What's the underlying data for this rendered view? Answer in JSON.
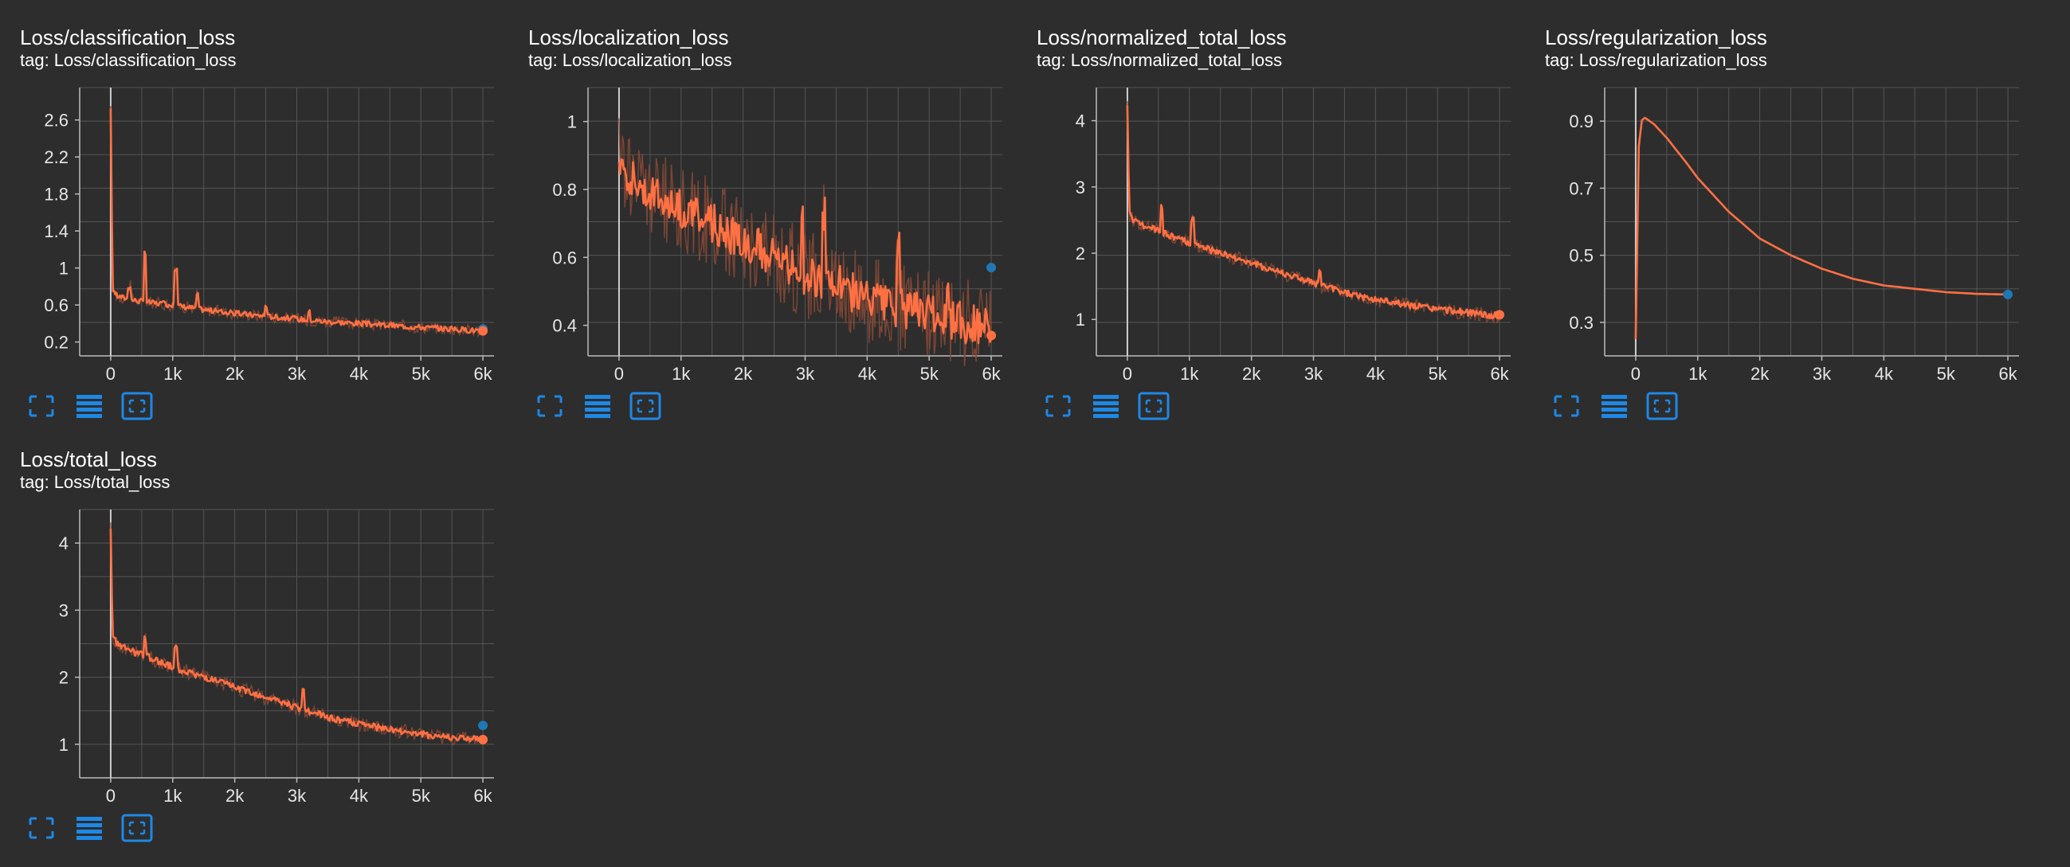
{
  "colors": {
    "background": "#2d2d2d",
    "grid": "#555555",
    "line": "#ff7043",
    "raw_line": "#8a4a36",
    "marker_blue": "#1f77b4",
    "icon": "#1e88e5"
  },
  "charts": [
    {
      "title": "Loss/classification_loss",
      "tag": "tag: Loss/classification_loss"
    },
    {
      "title": "Loss/localization_loss",
      "tag": "tag: Loss/localization_loss"
    },
    {
      "title": "Loss/normalized_total_loss",
      "tag": "tag: Loss/normalized_total_loss"
    },
    {
      "title": "Loss/regularization_loss",
      "tag": "tag: Loss/regularization_loss"
    },
    {
      "title": "Loss/total_loss",
      "tag": "tag: Loss/total_loss"
    }
  ],
  "toolbar_icons": [
    "fullscreen-icon",
    "data-table-icon",
    "fit-domain-icon"
  ],
  "chart_data": [
    {
      "type": "line",
      "title": "Loss/classification_loss",
      "xlim": [
        -500,
        6500
      ],
      "ylim": [
        0.05,
        2.95
      ],
      "x_ticks": [
        0,
        1000,
        2000,
        3000,
        4000,
        5000,
        6000
      ],
      "x_tick_labels": [
        "0",
        "1k",
        "2k",
        "3k",
        "4k",
        "5k",
        "6k"
      ],
      "y_ticks": [
        0.2,
        0.6,
        1,
        1.4,
        1.8,
        2.2,
        2.6
      ],
      "y_tick_labels": [
        "0.2",
        "0.6",
        "1",
        "1.4",
        "1.8",
        "2.2",
        "2.6"
      ],
      "series": [
        {
          "values_x": [
            0,
            30,
            100,
            300,
            600,
            1000,
            1500,
            2000,
            2500,
            3000,
            3500,
            4000,
            4500,
            5000,
            5500,
            6000
          ],
          "values_y": [
            2.7,
            0.78,
            0.7,
            0.66,
            0.63,
            0.6,
            0.55,
            0.51,
            0.48,
            0.45,
            0.42,
            0.4,
            0.38,
            0.36,
            0.34,
            0.32
          ]
        }
      ],
      "spikes": [
        [
          300,
          0.8
        ],
        [
          560,
          1.15
        ],
        [
          1050,
          1.0
        ],
        [
          1400,
          0.72
        ],
        [
          2500,
          0.6
        ],
        [
          3200,
          0.52
        ]
      ],
      "noise": 0.03,
      "end_markers": [
        {
          "x": 6000,
          "y": 0.34,
          "color": "blue"
        },
        {
          "x": 6000,
          "y": 0.32,
          "color": "orange"
        }
      ]
    },
    {
      "type": "line",
      "title": "Loss/localization_loss",
      "xlim": [
        -500,
        6500
      ],
      "ylim": [
        0.31,
        1.1
      ],
      "x_ticks": [
        0,
        1000,
        2000,
        3000,
        4000,
        5000,
        6000
      ],
      "x_tick_labels": [
        "0",
        "1k",
        "2k",
        "3k",
        "4k",
        "5k",
        "6k"
      ],
      "y_ticks": [
        0.4,
        0.6,
        0.8,
        1
      ],
      "y_tick_labels": [
        "0.4",
        "0.6",
        "0.8",
        "1"
      ],
      "series": [
        {
          "values_x": [
            0,
            100,
            300,
            600,
            1000,
            1500,
            2000,
            2500,
            3000,
            3500,
            4000,
            4500,
            5000,
            5500,
            6000
          ],
          "values_y": [
            0.9,
            0.86,
            0.82,
            0.78,
            0.74,
            0.7,
            0.65,
            0.6,
            0.55,
            0.52,
            0.48,
            0.45,
            0.43,
            0.41,
            0.39
          ]
        }
      ],
      "spikes": [
        [
          2950,
          0.76
        ],
        [
          3300,
          0.72
        ],
        [
          4500,
          0.62
        ],
        [
          5300,
          0.55
        ]
      ],
      "noise": 0.06,
      "end_markers": [
        {
          "x": 6000,
          "y": 0.57,
          "color": "blue"
        },
        {
          "x": 6000,
          "y": 0.37,
          "color": "orange"
        }
      ]
    },
    {
      "type": "line",
      "title": "Loss/normalized_total_loss",
      "xlim": [
        -500,
        6500
      ],
      "ylim": [
        0.45,
        4.5
      ],
      "x_ticks": [
        0,
        1000,
        2000,
        3000,
        4000,
        5000,
        6000
      ],
      "x_tick_labels": [
        "0",
        "1k",
        "2k",
        "3k",
        "4k",
        "5k",
        "6k"
      ],
      "y_ticks": [
        1,
        2,
        3,
        4
      ],
      "y_tick_labels": [
        "1",
        "2",
        "3",
        "4"
      ],
      "series": [
        {
          "values_x": [
            0,
            30,
            100,
            300,
            600,
            1000,
            1500,
            2000,
            2500,
            3000,
            3500,
            4000,
            4500,
            5000,
            5500,
            6000
          ],
          "values_y": [
            4.2,
            2.6,
            2.5,
            2.4,
            2.3,
            2.15,
            2.0,
            1.85,
            1.7,
            1.55,
            1.4,
            1.3,
            1.22,
            1.15,
            1.1,
            1.05
          ]
        }
      ],
      "spikes": [
        [
          550,
          2.7
        ],
        [
          1050,
          2.5
        ],
        [
          3100,
          1.75
        ]
      ],
      "noise": 0.05,
      "end_markers": [
        {
          "x": 6000,
          "y": 1.07,
          "color": "orange"
        }
      ]
    },
    {
      "type": "line",
      "title": "Loss/regularization_loss",
      "xlim": [
        -500,
        6500
      ],
      "ylim": [
        0.2,
        1.0
      ],
      "x_ticks": [
        0,
        1000,
        2000,
        3000,
        4000,
        5000,
        6000
      ],
      "x_tick_labels": [
        "0",
        "1k",
        "2k",
        "3k",
        "4k",
        "5k",
        "6k"
      ],
      "y_ticks": [
        0.3,
        0.5,
        0.7,
        0.9
      ],
      "y_tick_labels": [
        "0.3",
        "0.5",
        "0.7",
        "0.9"
      ],
      "series": [
        {
          "values_x": [
            0,
            40,
            80,
            150,
            300,
            500,
            800,
            1000,
            1500,
            2000,
            2500,
            3000,
            3500,
            4000,
            4500,
            5000,
            5500,
            6000
          ],
          "values_y": [
            0.25,
            0.8,
            0.9,
            0.91,
            0.89,
            0.85,
            0.78,
            0.73,
            0.63,
            0.55,
            0.5,
            0.46,
            0.43,
            0.41,
            0.4,
            0.39,
            0.385,
            0.383
          ]
        }
      ],
      "spikes": [],
      "noise": 0,
      "end_markers": [
        {
          "x": 6000,
          "y": 0.383,
          "color": "blue"
        }
      ]
    },
    {
      "type": "line",
      "title": "Loss/total_loss",
      "xlim": [
        -500,
        6500
      ],
      "ylim": [
        0.5,
        4.5
      ],
      "x_ticks": [
        0,
        1000,
        2000,
        3000,
        4000,
        5000,
        6000
      ],
      "x_tick_labels": [
        "0",
        "1k",
        "2k",
        "3k",
        "4k",
        "5k",
        "6k"
      ],
      "y_ticks": [
        1,
        2,
        3,
        4
      ],
      "y_tick_labels": [
        "1",
        "2",
        "3",
        "4"
      ],
      "series": [
        {
          "values_x": [
            0,
            30,
            100,
            300,
            600,
            1000,
            1500,
            2000,
            2500,
            3000,
            3500,
            4000,
            4500,
            5000,
            5500,
            6000
          ],
          "values_y": [
            4.2,
            2.6,
            2.5,
            2.4,
            2.3,
            2.15,
            2.0,
            1.85,
            1.7,
            1.55,
            1.4,
            1.3,
            1.22,
            1.15,
            1.1,
            1.07
          ]
        }
      ],
      "spikes": [
        [
          550,
          2.6
        ],
        [
          1050,
          2.45
        ],
        [
          3100,
          1.8
        ]
      ],
      "noise": 0.05,
      "end_markers": [
        {
          "x": 6000,
          "y": 1.28,
          "color": "blue"
        },
        {
          "x": 6000,
          "y": 1.07,
          "color": "orange"
        }
      ]
    }
  ]
}
